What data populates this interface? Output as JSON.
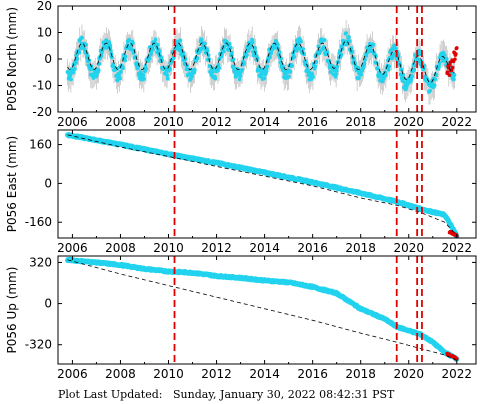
{
  "footer": {
    "label": "Plot Last Updated:",
    "timestamp": "Sunday, January 30, 2022 08:42:31 PST"
  },
  "colors": {
    "observed": "#22d3ee",
    "observed_errorbar": "#b0b0b0",
    "recent_observed": "#e00000",
    "model": "#000000",
    "event_line": "#e00000",
    "frame": "#000000"
  },
  "chart_data": [
    {
      "type": "scatter",
      "station": "P056",
      "component": "North",
      "ylabel": "P056 North (mm)",
      "xlim": [
        2005.4,
        2022.8
      ],
      "ylim": [
        -20,
        20
      ],
      "yticks": [
        -20,
        -10,
        0,
        10,
        20
      ],
      "xticks": [
        2006,
        2008,
        2010,
        2012,
        2014,
        2016,
        2018,
        2020,
        2022
      ],
      "event_lines": [
        2010.25,
        2019.5,
        2020.35,
        2020.55
      ],
      "series": [
        {
          "role": "observed",
          "x": [
            2005.8,
            2006.5,
            2007.5,
            2008.5,
            2009.5,
            2010.5,
            2011.5,
            2012.5,
            2013.5,
            2014.5,
            2015.5,
            2016.5,
            2017.3,
            2018.5,
            2019.5,
            2020.5,
            2021.5,
            2021.9
          ],
          "y": [
            0,
            0,
            0,
            0,
            0,
            0,
            0,
            0,
            0,
            0,
            0,
            0,
            2,
            -1,
            -3,
            -5,
            -5,
            0
          ],
          "seasonal_amplitude": 6
        },
        {
          "role": "model",
          "x": [
            2005.8,
            2006.5,
            2007.5,
            2008.5,
            2009.5,
            2010.5,
            2011.5,
            2012.5,
            2013.5,
            2014.5,
            2015.5,
            2016.5,
            2017.3,
            2018.5,
            2019.5,
            2020.5,
            2021.5,
            2021.9
          ],
          "y": [
            1,
            1,
            1,
            1,
            1,
            1,
            1,
            1,
            1,
            1,
            1,
            1,
            2,
            0,
            -2,
            -4,
            -4,
            0
          ],
          "seasonal_amplitude": 5
        },
        {
          "role": "recent_observed",
          "x": [
            2021.6,
            2021.7,
            2021.8,
            2021.9,
            2022.0
          ],
          "y": [
            -5,
            -4,
            -2,
            1,
            4
          ]
        }
      ]
    },
    {
      "type": "scatter",
      "station": "P056",
      "component": "East",
      "ylabel": "P056 East (mm)",
      "xlim": [
        2005.4,
        2022.8
      ],
      "ylim": [
        -225,
        220
      ],
      "yticks": [
        -160,
        0,
        160
      ],
      "xticks": [
        2006,
        2008,
        2010,
        2012,
        2014,
        2016,
        2018,
        2020,
        2022
      ],
      "event_lines": [
        2010.25,
        2019.5,
        2020.35,
        2020.55
      ],
      "series": [
        {
          "role": "observed",
          "x": [
            2005.8,
            2008.0,
            2010.3,
            2012.0,
            2014.0,
            2016.0,
            2018.0,
            2019.5,
            2020.5,
            2021.5,
            2022.0
          ],
          "y": [
            200,
            160,
            115,
            85,
            45,
            5,
            -40,
            -75,
            -105,
            -130,
            -215
          ]
        },
        {
          "role": "model",
          "x": [
            2005.8,
            2008.0,
            2010.3,
            2012.0,
            2014.0,
            2016.0,
            2018.0,
            2019.5,
            2020.5,
            2021.5,
            2022.0
          ],
          "y": [
            200,
            150,
            105,
            70,
            30,
            -10,
            -60,
            -90,
            -120,
            -160,
            -215
          ]
        },
        {
          "role": "recent_observed",
          "x": [
            2021.7,
            2021.85,
            2022.0
          ],
          "y": [
            -200,
            -207,
            -215
          ]
        }
      ]
    },
    {
      "type": "scatter",
      "station": "P056",
      "component": "Up",
      "ylabel": "P056 Up (mm)",
      "xlim": [
        2005.4,
        2022.8
      ],
      "ylim": [
        -470,
        370
      ],
      "yticks": [
        -320,
        0,
        320
      ],
      "xticks": [
        2006,
        2008,
        2010,
        2012,
        2014,
        2016,
        2018,
        2020,
        2022
      ],
      "event_lines": [
        2010.25,
        2019.5,
        2020.35,
        2020.55
      ],
      "series": [
        {
          "role": "observed",
          "x": [
            2005.8,
            2007.0,
            2008.0,
            2009.0,
            2010.0,
            2011.0,
            2012.0,
            2013.0,
            2014.0,
            2015.0,
            2016.0,
            2017.0,
            2017.5,
            2018.0,
            2018.5,
            2019.0,
            2019.5,
            2020.0,
            2020.5,
            2021.0,
            2021.5,
            2022.0
          ],
          "y": [
            340,
            320,
            300,
            270,
            250,
            240,
            215,
            200,
            180,
            165,
            130,
            80,
            20,
            -40,
            -80,
            -120,
            -180,
            -210,
            -240,
            -300,
            -380,
            -430
          ]
        },
        {
          "role": "model",
          "x": [
            2005.8,
            2008.0,
            2010.0,
            2012.0,
            2014.0,
            2016.0,
            2018.0,
            2019.5,
            2020.5,
            2021.5,
            2022.0
          ],
          "y": [
            340,
            230,
            140,
            50,
            -40,
            -130,
            -230,
            -300,
            -350,
            -400,
            -440
          ]
        },
        {
          "role": "recent_observed",
          "x": [
            2021.6,
            2021.8,
            2022.0
          ],
          "y": [
            -390,
            -410,
            -430
          ]
        }
      ]
    }
  ]
}
